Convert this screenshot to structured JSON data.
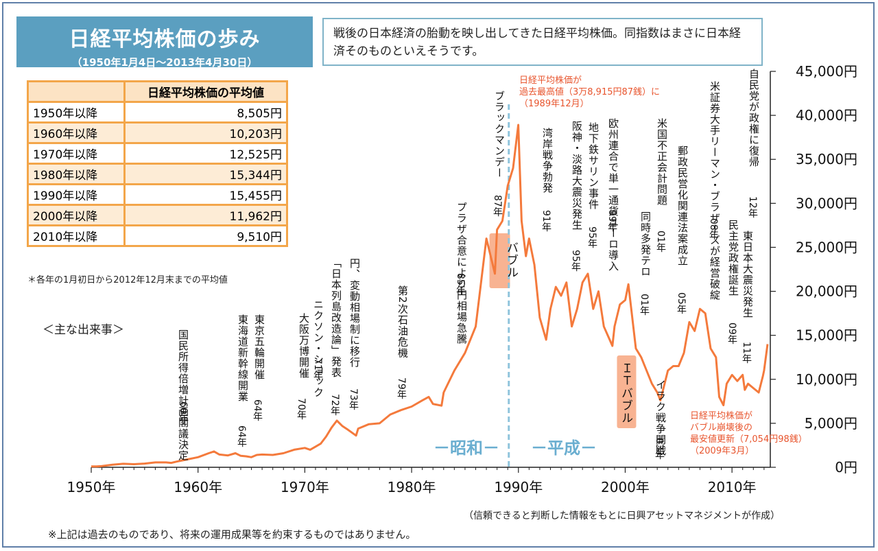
{
  "title": {
    "main": "日経平均株価の歩み",
    "sub": "（1950年1月4日～2013年4月30日）"
  },
  "intro": "戦後の日本経済の胎動を映し出してきた日経平均株価。同指数はまさに日本経済そのものといえそうです。",
  "avg_table": {
    "header": "日経平均株価の平均値",
    "rows": [
      {
        "period": "1950年以降",
        "value": "8,505円"
      },
      {
        "period": "1960年以降",
        "value": "10,203円"
      },
      {
        "period": "1970年以降",
        "value": "12,525円"
      },
      {
        "period": "1980年以降",
        "value": "15,344円"
      },
      {
        "period": "1990年以降",
        "value": "15,455円"
      },
      {
        "period": "2000年以降",
        "value": "11,962円"
      },
      {
        "period": "2010年以降",
        "value": "9,510円"
      }
    ],
    "note": "＊各年の1月初日から2012年12月末までの平均値"
  },
  "events_title": "＜主な出来事＞",
  "source": "（信頼できると判断した情報をもとに日興アセットマネジメントが作成）",
  "disclaimer": "※上記は過去のものであり、将来の運用成果等を約束するものではありません。",
  "colors": {
    "line": "#f47a3c",
    "title_bg": "#5b9fc0",
    "table_border": "#f3a64a",
    "era_text": "#6aaed0",
    "callout_text": "#e8552e",
    "badge_bg": "#f8b392"
  },
  "chart_data": {
    "type": "line",
    "xlabel": "",
    "ylabel": "",
    "xlim": [
      1950,
      2013.33
    ],
    "ylim": [
      0,
      45000
    ],
    "x_ticks": [
      "1950年",
      "1960年",
      "1970年",
      "1980年",
      "1990年",
      "2000年",
      "2010年"
    ],
    "y_ticks": [
      "0円",
      "5,000円",
      "10,000円",
      "15,000円",
      "20,000円",
      "25,000円",
      "30,000円",
      "35,000円",
      "40,000円",
      "45,000円"
    ],
    "grid": false,
    "series": [
      {
        "name": "",
        "x": [
          1950.0,
          1950.5,
          1951.0,
          1952.0,
          1953.0,
          1954.0,
          1955.0,
          1956.0,
          1957.0,
          1957.5,
          1958.0,
          1959.0,
          1960.0,
          1961.0,
          1961.5,
          1962.0,
          1962.8,
          1963.5,
          1964.0,
          1964.5,
          1965.0,
          1965.5,
          1966.0,
          1967.0,
          1968.0,
          1969.0,
          1970.0,
          1970.5,
          1971.0,
          1971.5,
          1972.0,
          1972.5,
          1973.0,
          1973.5,
          1974.0,
          1974.8,
          1975.0,
          1976.0,
          1977.0,
          1978.0,
          1979.0,
          1980.0,
          1981.0,
          1981.6,
          1982.0,
          1982.8,
          1983.0,
          1984.0,
          1985.0,
          1986.0,
          1987.0,
          1987.8,
          1988.0,
          1988.5,
          1989.0,
          1989.5,
          1989.99,
          1990.3,
          1990.7,
          1991.0,
          1991.5,
          1992.0,
          1992.6,
          1993.0,
          1993.5,
          1994.0,
          1994.5,
          1995.0,
          1995.5,
          1996.0,
          1996.5,
          1997.0,
          1997.5,
          1998.0,
          1998.8,
          1999.0,
          1999.5,
          2000.0,
          2000.3,
          2001.0,
          2001.5,
          2002.0,
          2002.5,
          2003.0,
          2003.3,
          2004.0,
          2004.5,
          2005.0,
          2005.5,
          2006.0,
          2006.5,
          2007.0,
          2007.5,
          2008.0,
          2008.5,
          2008.8,
          2009.2,
          2009.5,
          2010.0,
          2010.5,
          2011.0,
          2011.2,
          2011.5,
          2012.0,
          2012.5,
          2012.9,
          2013.0,
          2013.33
        ],
        "values": [
          100,
          90,
          140,
          300,
          400,
          350,
          425,
          550,
          550,
          500,
          650,
          900,
          1150,
          1600,
          1800,
          1450,
          1350,
          1600,
          1300,
          1250,
          1150,
          1400,
          1450,
          1400,
          1600,
          2000,
          2200,
          2000,
          2350,
          2700,
          3500,
          4500,
          5300,
          4700,
          4300,
          3600,
          4400,
          4900,
          5000,
          6000,
          6500,
          6900,
          7600,
          8000,
          7200,
          7000,
          8500,
          11000,
          13000,
          16000,
          26000,
          22000,
          27000,
          28000,
          32000,
          34000,
          38915,
          28000,
          24000,
          26000,
          23000,
          17000,
          14500,
          18000,
          20500,
          19500,
          21000,
          16000,
          18000,
          21000,
          22000,
          18000,
          20000,
          16000,
          13800,
          16000,
          18500,
          19000,
          20800,
          13500,
          12500,
          11000,
          9500,
          8500,
          7607,
          11000,
          11500,
          11500,
          13000,
          16500,
          15500,
          18000,
          17500,
          13500,
          12500,
          8000,
          7054,
          9500,
          10500,
          9800,
          10500,
          8800,
          9500,
          9000,
          8500,
          10400,
          11000,
          14000
        ]
      }
    ],
    "annotations": [
      {
        "text": "国民所得倍増計画閣議決定",
        "year": "60年"
      },
      {
        "text": "東海道新幹線開業",
        "year": "64年"
      },
      {
        "text": "東京五輪開催",
        "year": "64年"
      },
      {
        "text": "大阪万博開催",
        "year": "70年"
      },
      {
        "text": "ニクソン・ショック",
        "year": "71年"
      },
      {
        "text": "「日本列島改造論」発表",
        "year": "72年"
      },
      {
        "text": "円、変動相場制に移行",
        "year": "73年"
      },
      {
        "text": "第2次石油危機",
        "year": "79年"
      },
      {
        "text": "プラザ合意により円相場急騰",
        "year": "85年"
      },
      {
        "text": "ブラックマンデー",
        "year": "87年"
      },
      {
        "text": "湾岸戦争勃発",
        "year": "91年"
      },
      {
        "text": "阪神・淡路大震災発生",
        "year": "95年"
      },
      {
        "text": "地下鉄サリン事件",
        "year": "95年"
      },
      {
        "text": "欧州連合で単一通貨ユーロ導入",
        "year": "99年"
      },
      {
        "text": "米国不正会計問題",
        "year": "01年"
      },
      {
        "text": "同時多発テロ",
        "year": "01年"
      },
      {
        "text": "イラク戦争開戦",
        "year": "03年"
      },
      {
        "text": "郵政民営化関連法案成立",
        "year": "05年"
      },
      {
        "text": "米証券大手リーマン・ブラザーズが経営破綻",
        "year": "08年"
      },
      {
        "text": "民主党政権誕生",
        "year": "09年"
      },
      {
        "text": "東日本大震災発生",
        "year": "11年"
      },
      {
        "text": "自民党が政権に復帰",
        "year": "12年"
      }
    ],
    "callouts": {
      "peak": [
        "日経平均株価が",
        "過去最高値（3万8,915円87銭）に",
        "（1989年12月）"
      ],
      "low": [
        "日経平均株価が",
        "バブル崩壊後の",
        "最安値更新（7,054円98銭）",
        "（2009年3月）"
      ]
    },
    "eras": [
      "－昭和－",
      "－平成－"
    ],
    "badges": [
      "バブル",
      "ＩＴバブル"
    ]
  }
}
